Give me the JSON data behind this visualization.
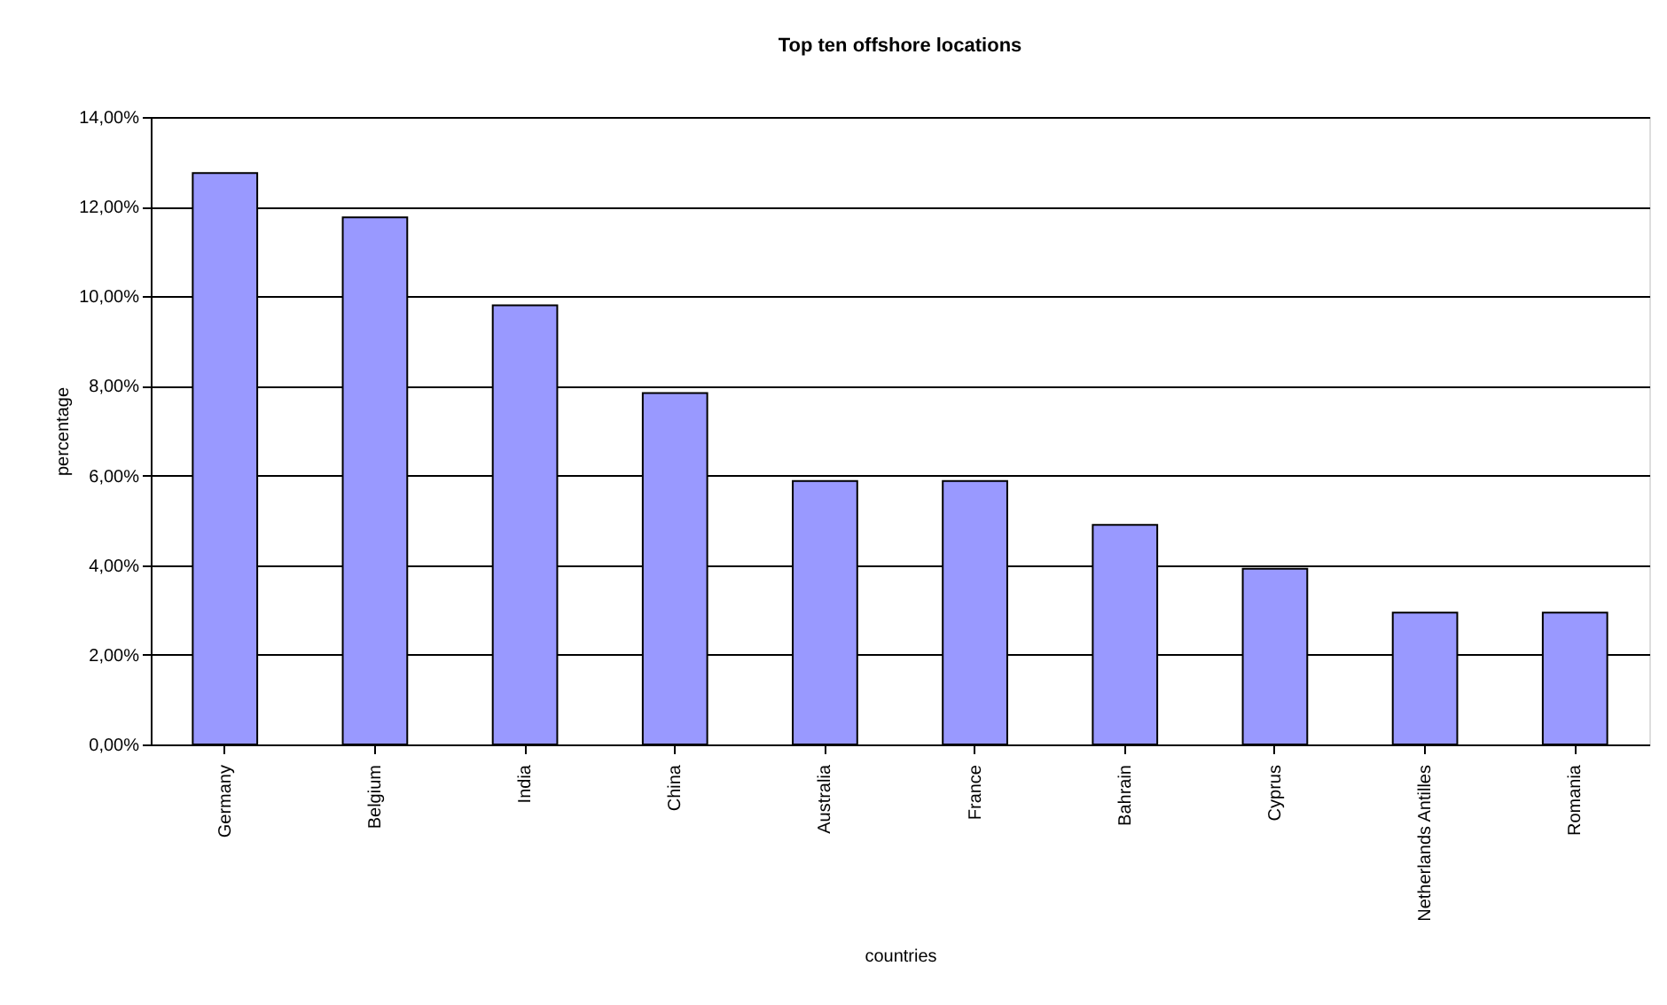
{
  "chart_data": {
    "type": "bar",
    "title": "Top ten offshore locations",
    "xlabel": "countries",
    "ylabel": "percentage",
    "categories": [
      "Germany",
      "Belgium",
      "India",
      "China",
      "Australia",
      "France",
      "Bahrain",
      "Cyprus",
      "Netherlands Antilles",
      "Romania"
    ],
    "values": [
      12.75,
      11.76,
      9.8,
      7.84,
      5.88,
      5.88,
      4.9,
      3.92,
      2.94,
      2.94
    ],
    "color": "#9999ff",
    "ylim": [
      0,
      14
    ],
    "yticks": [
      {
        "value": 0,
        "label": "0,00%"
      },
      {
        "value": 2,
        "label": "2,00%"
      },
      {
        "value": 4,
        "label": "4,00%"
      },
      {
        "value": 6,
        "label": "6,00%"
      },
      {
        "value": 8,
        "label": "8,00%"
      },
      {
        "value": 10,
        "label": "10,00%"
      },
      {
        "value": 12,
        "label": "12,00%"
      },
      {
        "value": 14,
        "label": "14,00%"
      }
    ],
    "grid": "y"
  }
}
